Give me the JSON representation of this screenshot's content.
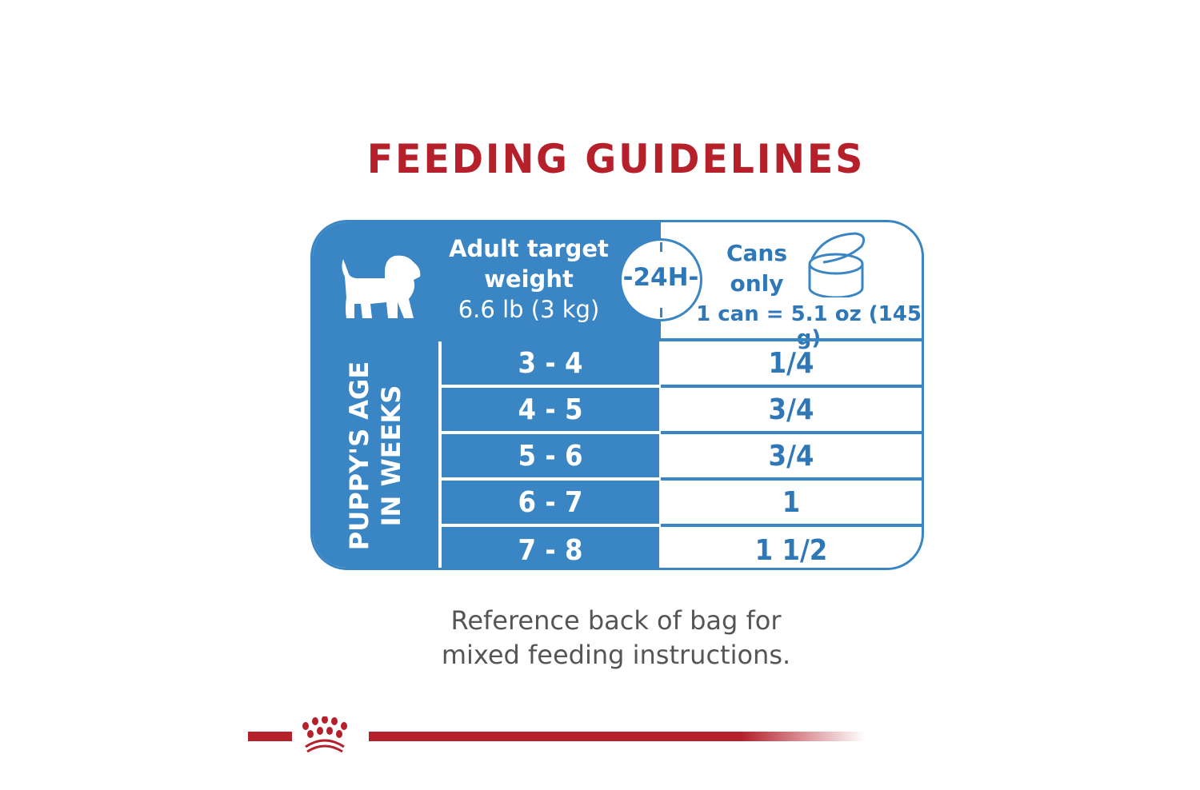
{
  "title": "FEEDING GUIDELINES",
  "header": {
    "weight_line1": "Adult target",
    "weight_line2": "weight",
    "weight_line3": "6.6 lb (3 kg)",
    "period": "24H",
    "cans_line1": "Cans",
    "cans_line2": "only",
    "can_size": "1 can = 5.1 oz (145 g)"
  },
  "side_label_line1": "PUPPY'S AGE",
  "side_label_line2": "IN WEEKS",
  "rows": [
    {
      "age": "3 - 4",
      "amount": "1/4"
    },
    {
      "age": "4 - 5",
      "amount": "3/4"
    },
    {
      "age": "5 - 6",
      "amount": "3/4"
    },
    {
      "age": "6 - 7",
      "amount": "1"
    },
    {
      "age": "7 - 8",
      "amount": "1 1/2"
    }
  ],
  "note_line1": "Reference back of bag for",
  "note_line2": "mixed feeding instructions.",
  "colors": {
    "blue": "#3a85c4",
    "red": "#b5202a"
  },
  "icons": [
    "puppy-icon",
    "clock-24h-icon",
    "can-icon",
    "royal-canin-crown-logo"
  ]
}
